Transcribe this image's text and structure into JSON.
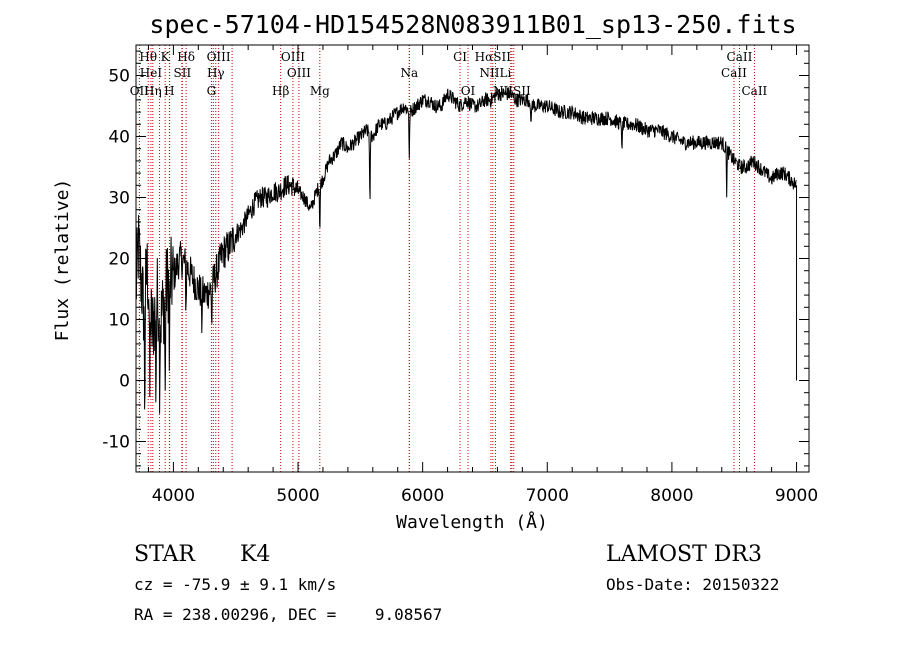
{
  "chart_data": {
    "type": "line",
    "title": "spec-57104-HD154528N083911B01_sp13-250.fits",
    "xlabel": "Wavelength (Å)",
    "ylabel": "Flux (relative)",
    "xlim": [
      3700,
      9100
    ],
    "ylim": [
      -15,
      55
    ],
    "xticks": [
      4000,
      5000,
      6000,
      7000,
      8000,
      9000
    ],
    "yticks": [
      -10,
      0,
      10,
      20,
      30,
      40,
      50
    ],
    "line_color": "#000000",
    "marker_color": "#cc0000",
    "spectrum_anchors": {
      "x": [
        3700,
        3720,
        3760,
        3790,
        3830,
        3870,
        3900,
        3950,
        4000,
        4050,
        4100,
        4150,
        4200,
        4250,
        4300,
        4350,
        4400,
        4450,
        4500,
        4550,
        4600,
        4650,
        4700,
        4750,
        4800,
        4850,
        4900,
        4950,
        5000,
        5050,
        5100,
        5150,
        5200,
        5250,
        5300,
        5350,
        5400,
        5450,
        5500,
        5550,
        5600,
        5650,
        5700,
        5750,
        5800,
        5850,
        5900,
        5950,
        6000,
        6050,
        6100,
        6150,
        6200,
        6250,
        6300,
        6350,
        6400,
        6450,
        6500,
        6550,
        6600,
        6650,
        6700,
        6750,
        6800,
        6850,
        6900,
        7000,
        7100,
        7200,
        7300,
        7400,
        7500,
        7600,
        7700,
        7800,
        7900,
        8000,
        8100,
        8200,
        8300,
        8400,
        8500,
        8550,
        8600,
        8650,
        8700,
        8750,
        8800,
        8850,
        8900,
        8950,
        9000
      ],
      "y": [
        15,
        22,
        12,
        18,
        8,
        14,
        10,
        16,
        17,
        20,
        19,
        17,
        15,
        14,
        15,
        18,
        21,
        22,
        24,
        25,
        27,
        29,
        30,
        30,
        31,
        31,
        32,
        32,
        31,
        30,
        28,
        31,
        33,
        36,
        37,
        39,
        38,
        39,
        40,
        41,
        40,
        42,
        42,
        43,
        44,
        45,
        44,
        45,
        46,
        46,
        45,
        45,
        47,
        46,
        45,
        46,
        45,
        45,
        46,
        46,
        47,
        47,
        47,
        46,
        46,
        46,
        45,
        45,
        44,
        44,
        43,
        43,
        43,
        42,
        42,
        41,
        41,
        40,
        39,
        39,
        39,
        39,
        36,
        35,
        35,
        36,
        35,
        34,
        33,
        34,
        34,
        33,
        32
      ]
    },
    "noise_amplitude": [
      {
        "x_max": 4000,
        "amp": 7
      },
      {
        "x_max": 4500,
        "amp": 3
      },
      {
        "x_max": 5000,
        "amp": 1.8
      },
      {
        "x_max": 9100,
        "amp": 1.2
      }
    ],
    "absorption_features": [
      {
        "x": 3770,
        "depth": 20
      },
      {
        "x": 3810,
        "depth": 18
      },
      {
        "x": 3860,
        "depth": 15
      },
      {
        "x": 3890,
        "depth": 12
      },
      {
        "x": 3934,
        "depth": 18
      },
      {
        "x": 3968,
        "depth": 16
      },
      {
        "x": 4101,
        "depth": 8
      },
      {
        "x": 4227,
        "depth": 6
      },
      {
        "x": 4308,
        "depth": 7
      },
      {
        "x": 5175,
        "depth": 8
      },
      {
        "x": 5577,
        "depth": 14
      },
      {
        "x": 5893,
        "depth": 8
      },
      {
        "x": 6870,
        "depth": 5
      },
      {
        "x": 7600,
        "depth": 5
      },
      {
        "x": 8440,
        "depth": 7
      }
    ],
    "spectral_lines": [
      {
        "label": "Hθ",
        "x": 3798,
        "tier": 0
      },
      {
        "label": "K",
        "x": 3934,
        "tier": 0
      },
      {
        "label": "Hδ",
        "x": 4102,
        "tier": 0
      },
      {
        "label": "OIII",
        "x": 4363,
        "tier": 0
      },
      {
        "label": "OIII",
        "x": 4959,
        "tier": 0
      },
      {
        "label": "CI",
        "x": 6300,
        "tier": 0
      },
      {
        "label": "HαSII",
        "x": 6563,
        "tier": 0
      },
      {
        "label": "CaII",
        "x": 8542,
        "tier": 0
      },
      {
        "label": "HeI",
        "x": 3820,
        "tier": 1
      },
      {
        "label": "SII",
        "x": 4072,
        "tier": 1
      },
      {
        "label": "Hγ",
        "x": 4340,
        "tier": 1
      },
      {
        "label": "OIII",
        "x": 5007,
        "tier": 1
      },
      {
        "label": "Na",
        "x": 5893,
        "tier": 1
      },
      {
        "label": "NIILi",
        "x": 6584,
        "tier": 1
      },
      {
        "label": "CaII",
        "x": 8498,
        "tier": 1
      },
      {
        "label": "OII",
        "x": 3727,
        "tier": 2
      },
      {
        "label": "Hη",
        "x": 3835,
        "tier": 2
      },
      {
        "label": "H",
        "x": 3968,
        "tier": 2
      },
      {
        "label": "G",
        "x": 4305,
        "tier": 2
      },
      {
        "label": "Hβ",
        "x": 4861,
        "tier": 2
      },
      {
        "label": "Mg",
        "x": 5175,
        "tier": 2
      },
      {
        "label": "OI",
        "x": 6364,
        "tier": 2
      },
      {
        "label": "NIISII",
        "x": 6716,
        "tier": 2
      },
      {
        "label": "CaII",
        "x": 8662,
        "tier": 2
      }
    ],
    "extra_marker_lines": [
      3889,
      3970,
      4068,
      4320,
      4471,
      5893,
      6548,
      6707,
      6731
    ]
  },
  "info": {
    "object_class": "STAR",
    "subclass": "K4",
    "survey": "LAMOST DR3",
    "cz": "cz = -75.9 ± 9.1 km/s",
    "obs_date": "Obs-Date: 20150322",
    "coords": "RA = 238.00296, DEC =    9.08567"
  }
}
